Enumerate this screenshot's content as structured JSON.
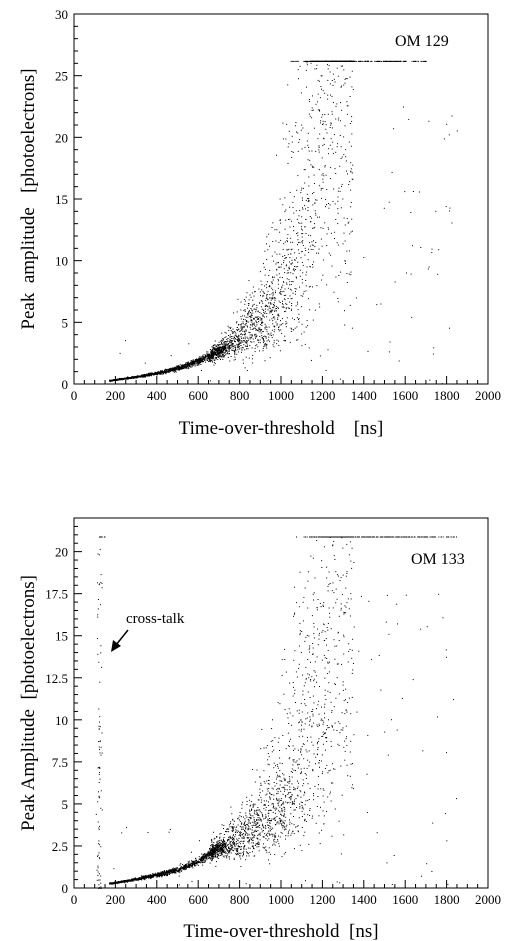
{
  "chart_data": [
    {
      "type": "scatter",
      "title": "",
      "tag": "OM 129",
      "xlabel": "Time-over-threshold    [ns]",
      "ylabel": "Peak  amplitude   [photoelectrons]",
      "xlim": [
        0,
        2000
      ],
      "ylim": [
        0,
        30
      ],
      "xticks": [
        "0",
        "200",
        "400",
        "600",
        "800",
        "1000",
        "1200",
        "1400",
        "1600",
        "1800",
        "2000"
      ],
      "yticks": [
        "0",
        "5",
        "10",
        "15",
        "20",
        "25",
        "30"
      ],
      "ytick_values": [
        0,
        5,
        10,
        15,
        20,
        25,
        30
      ],
      "grid": false,
      "legend": "none",
      "saturation_level": 26.2,
      "saturation_x_range": [
        1140,
        1700
      ],
      "trend_points": [
        [
          170,
          0.3
        ],
        [
          300,
          0.6
        ],
        [
          400,
          0.9
        ],
        [
          500,
          1.3
        ],
        [
          600,
          1.9
        ],
        [
          700,
          2.7
        ],
        [
          800,
          3.8
        ],
        [
          900,
          5.2
        ],
        [
          1000,
          7.5
        ],
        [
          1080,
          11
        ],
        [
          1150,
          17
        ],
        [
          1200,
          22
        ],
        [
          1240,
          26
        ]
      ],
      "marker_color": "#000000"
    },
    {
      "type": "scatter",
      "title": "",
      "tag": "OM 133",
      "xlabel": "Time-over-threshold  [ns]",
      "ylabel": "Peak Amplitude  [photoelectrons]",
      "xlim": [
        0,
        2000
      ],
      "ylim": [
        0,
        22
      ],
      "xticks": [
        "0",
        "200",
        "400",
        "600",
        "800",
        "1000",
        "1200",
        "1400",
        "1600",
        "1800",
        "2000"
      ],
      "yticks": [
        "0",
        "2.5",
        "5",
        "7.5",
        "10",
        "12.5",
        "15",
        "17.5",
        "20"
      ],
      "ytick_values": [
        0,
        2.5,
        5,
        7.5,
        10,
        12.5,
        15,
        17.5,
        20
      ],
      "grid": false,
      "legend": "none",
      "saturation_level": 20.9,
      "saturation_x_range": [
        1190,
        1850
      ],
      "crosstalk_x": 120,
      "annotation": "cross-talk",
      "trend_points": [
        [
          180,
          0.3
        ],
        [
          300,
          0.55
        ],
        [
          400,
          0.8
        ],
        [
          500,
          1.1
        ],
        [
          600,
          1.6
        ],
        [
          680,
          2.3
        ],
        [
          800,
          3.0
        ],
        [
          900,
          3.8
        ],
        [
          1000,
          5.0
        ],
        [
          1080,
          7.5
        ],
        [
          1150,
          11
        ],
        [
          1220,
          15
        ],
        [
          1280,
          20
        ]
      ],
      "marker_color": "#000000"
    }
  ]
}
